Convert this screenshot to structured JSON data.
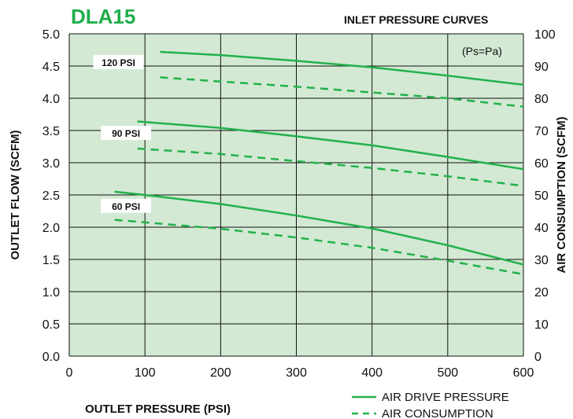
{
  "brand": "DLA15",
  "colors": {
    "plot_bg": "#d3e9d3",
    "curve": "#22b24c",
    "grid": "#111111",
    "brand": "#1fae4a"
  },
  "chart_data": {
    "type": "line",
    "title": "INLET PRESSURE CURVES",
    "annotation": "(Ps=Pa)",
    "xlabel": "OUTLET PRESSURE (PSI)",
    "ylabel": "OUTLET FLOW (SCFM)",
    "y2label": "AIR CONSUMPTION (SCFM)",
    "xlim": [
      0,
      600
    ],
    "ylim": [
      0,
      5
    ],
    "y2lim": [
      0,
      100
    ],
    "xticks": [
      "0",
      "100",
      "200",
      "300",
      "400",
      "500",
      "600"
    ],
    "yticks": [
      "0.0",
      "0.5",
      "1.0",
      "1.5",
      "2.0",
      "2.5",
      "3.0",
      "3.5",
      "4.0",
      "4.5",
      "5.0"
    ],
    "y2ticks": [
      "0",
      "10",
      "20",
      "30",
      "40",
      "50",
      "60",
      "70",
      "80",
      "90",
      "100"
    ],
    "grid": true,
    "legend": [
      "AIR DRIVE PRESSURE",
      "AIR CONSUMPTION"
    ],
    "legend_position": "bottom-right",
    "groups": [
      {
        "label": "120 PSI",
        "label_at": {
          "x": 65,
          "y": 4.55
        },
        "flow": {
          "x": [
            120,
            200,
            300,
            400,
            500,
            600
          ],
          "y": [
            4.72,
            4.67,
            4.58,
            4.48,
            4.35,
            4.21
          ]
        },
        "consumption": {
          "x": [
            120,
            200,
            300,
            400,
            500,
            600
          ],
          "y": [
            86.5,
            85.2,
            83.6,
            81.8,
            80.0,
            77.4
          ]
        }
      },
      {
        "label": "90 PSI",
        "label_at": {
          "x": 75,
          "y": 3.45
        },
        "flow": {
          "x": [
            90,
            200,
            300,
            400,
            500,
            600
          ],
          "y": [
            3.64,
            3.54,
            3.41,
            3.27,
            3.09,
            2.9
          ]
        },
        "consumption": {
          "x": [
            90,
            200,
            300,
            400,
            500,
            600
          ],
          "y": [
            64.4,
            62.7,
            60.5,
            58.4,
            55.8,
            52.8
          ]
        }
      },
      {
        "label": "60 PSI",
        "label_at": {
          "x": 75,
          "y": 2.32
        },
        "flow": {
          "x": [
            60,
            100,
            200,
            300,
            400,
            500,
            600
          ],
          "y": [
            2.55,
            2.5,
            2.36,
            2.18,
            1.98,
            1.72,
            1.42
          ]
        },
        "consumption": {
          "x": [
            60,
            100,
            200,
            300,
            400,
            500,
            600
          ],
          "y": [
            42.3,
            41.5,
            39.5,
            36.8,
            33.6,
            29.6,
            25.4
          ]
        }
      }
    ]
  }
}
